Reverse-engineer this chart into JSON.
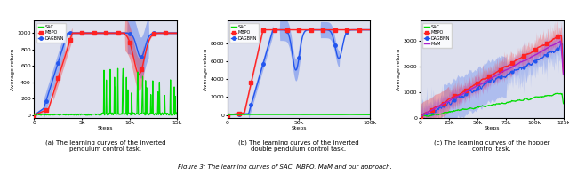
{
  "fig_width": 6.4,
  "fig_height": 1.95,
  "dpi": 100,
  "background_color": "#dde0ee",
  "subtitle": "Figure 3: The learning curves of SAC, MBPO, MaM and our approach.",
  "ylabel": "Average return",
  "colors": {
    "SAC": "#00dd00",
    "MBPO": "#ff2222",
    "DAGBNN": "#2255ee",
    "MaM": "#aa22cc"
  },
  "plot1": {
    "xlim": [
      0,
      15000
    ],
    "ylim": [
      -30,
      1150
    ],
    "xticks": [
      0,
      5000,
      10000,
      15000
    ],
    "xticklabels": [
      "0",
      "5k",
      "10k",
      "15k"
    ],
    "yticks": [
      0,
      200,
      400,
      600,
      800,
      1000
    ],
    "xlabel": "Steps",
    "caption": "(a) The learning curves of the inverted\npendulum control task."
  },
  "plot2": {
    "xlim": [
      0,
      100000
    ],
    "ylim": [
      -300,
      10500
    ],
    "xticks": [
      0,
      50000,
      100000
    ],
    "xticklabels": [
      "0",
      "50k",
      "100k"
    ],
    "yticks": [
      0,
      2000,
      4000,
      6000,
      8000
    ],
    "xlabel": "Steps",
    "caption": "(b) The learning curves of the inverted\ndouble pendulum control task."
  },
  "plot3": {
    "xlim": [
      0,
      125000
    ],
    "ylim": [
      0,
      3800
    ],
    "xticks": [
      0,
      25000,
      50000,
      75000,
      100000,
      125000
    ],
    "xticklabels": [
      "0",
      "25k",
      "50k",
      "75k",
      "100k",
      "125k"
    ],
    "yticks": [
      0,
      1000,
      2000,
      3000
    ],
    "xlabel": "Steps",
    "caption": "(c) The learning curves of the hopper\ncontrol task."
  }
}
